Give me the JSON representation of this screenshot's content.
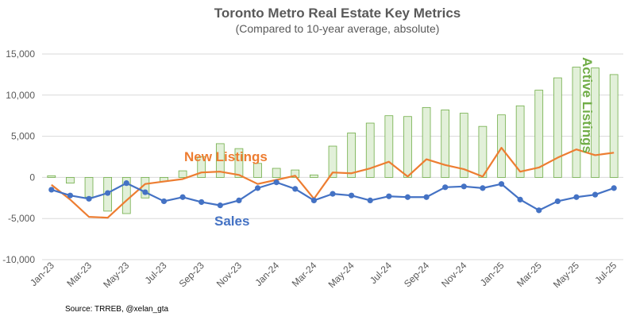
{
  "chart_data": {
    "type": "bar+line",
    "title": "Toronto Metro Real Estate Key Metrics",
    "subtitle": "(Compared to 10-year average, absolute)",
    "ylim": [
      -10000,
      15000
    ],
    "yticks": [
      15000,
      10000,
      5000,
      0,
      -5000,
      -10000
    ],
    "ytick_labels": [
      "15,000",
      "10,000",
      "5,000",
      "0",
      "-5,000",
      "-10,000"
    ],
    "grid": true,
    "months": [
      "Jan-23",
      "Feb-23",
      "Mar-23",
      "Apr-23",
      "May-23",
      "Jun-23",
      "Jul-23",
      "Aug-23",
      "Sep-23",
      "Oct-23",
      "Nov-23",
      "Dec-23",
      "Jan-24",
      "Feb-24",
      "Mar-24",
      "Apr-24",
      "May-24",
      "Jun-24",
      "Jul-24",
      "Aug-24",
      "Sep-24",
      "Oct-24",
      "Nov-24",
      "Dec-24",
      "Jan-25",
      "Feb-25",
      "Mar-25",
      "Apr-25",
      "May-25",
      "Jun-25",
      "Jul-25"
    ],
    "xtick_labels": [
      "Jan-23",
      "Mar-23",
      "May-23",
      "Jul-23",
      "Sep-23",
      "Nov-23",
      "Jan-24",
      "Mar-24",
      "May-24",
      "Jul-24",
      "Sep-24",
      "Nov-24",
      "Jan-25",
      "Mar-25",
      "May-25",
      "Jul-25"
    ],
    "series": [
      {
        "name": "Active Listings",
        "kind": "bar",
        "color": "#70ad47",
        "fill": "#e2f0d9",
        "values": [
          200,
          -700,
          -2400,
          -4100,
          -4400,
          -2500,
          -500,
          800,
          2500,
          4100,
          3500,
          1700,
          1100,
          900,
          300,
          3800,
          5400,
          6600,
          7500,
          7400,
          8500,
          8200,
          7800,
          6200,
          7600,
          8700,
          10600,
          12100,
          13400,
          13300,
          12500
        ]
      },
      {
        "name": "New Listings",
        "kind": "line",
        "color": "#ed7d31",
        "values": [
          -900,
          -2700,
          -4800,
          -4900,
          -2800,
          -800,
          -500,
          -200,
          600,
          700,
          300,
          -800,
          -300,
          200,
          -2600,
          600,
          500,
          1100,
          1900,
          100,
          2200,
          1500,
          1000,
          100,
          3600,
          700,
          1200,
          2400,
          3400,
          2700,
          3000
        ]
      },
      {
        "name": "Sales",
        "kind": "line-markers",
        "color": "#4472c4",
        "values": [
          -1500,
          -2200,
          -2600,
          -1900,
          -700,
          -1800,
          -2900,
          -2400,
          -3000,
          -3400,
          -2800,
          -1300,
          -600,
          -1400,
          -2800,
          -2000,
          -2200,
          -2800,
          -2300,
          -2400,
          -2400,
          -1200,
          -1100,
          -1300,
          -800,
          -2700,
          -4000,
          -2900,
          -2400,
          -2100,
          -1300
        ]
      }
    ],
    "annotations": {
      "new_listings": "New Listings",
      "sales": "Sales",
      "active_listings": "Active Listings"
    },
    "source": "Source: TRREB, @xelan_gta"
  }
}
